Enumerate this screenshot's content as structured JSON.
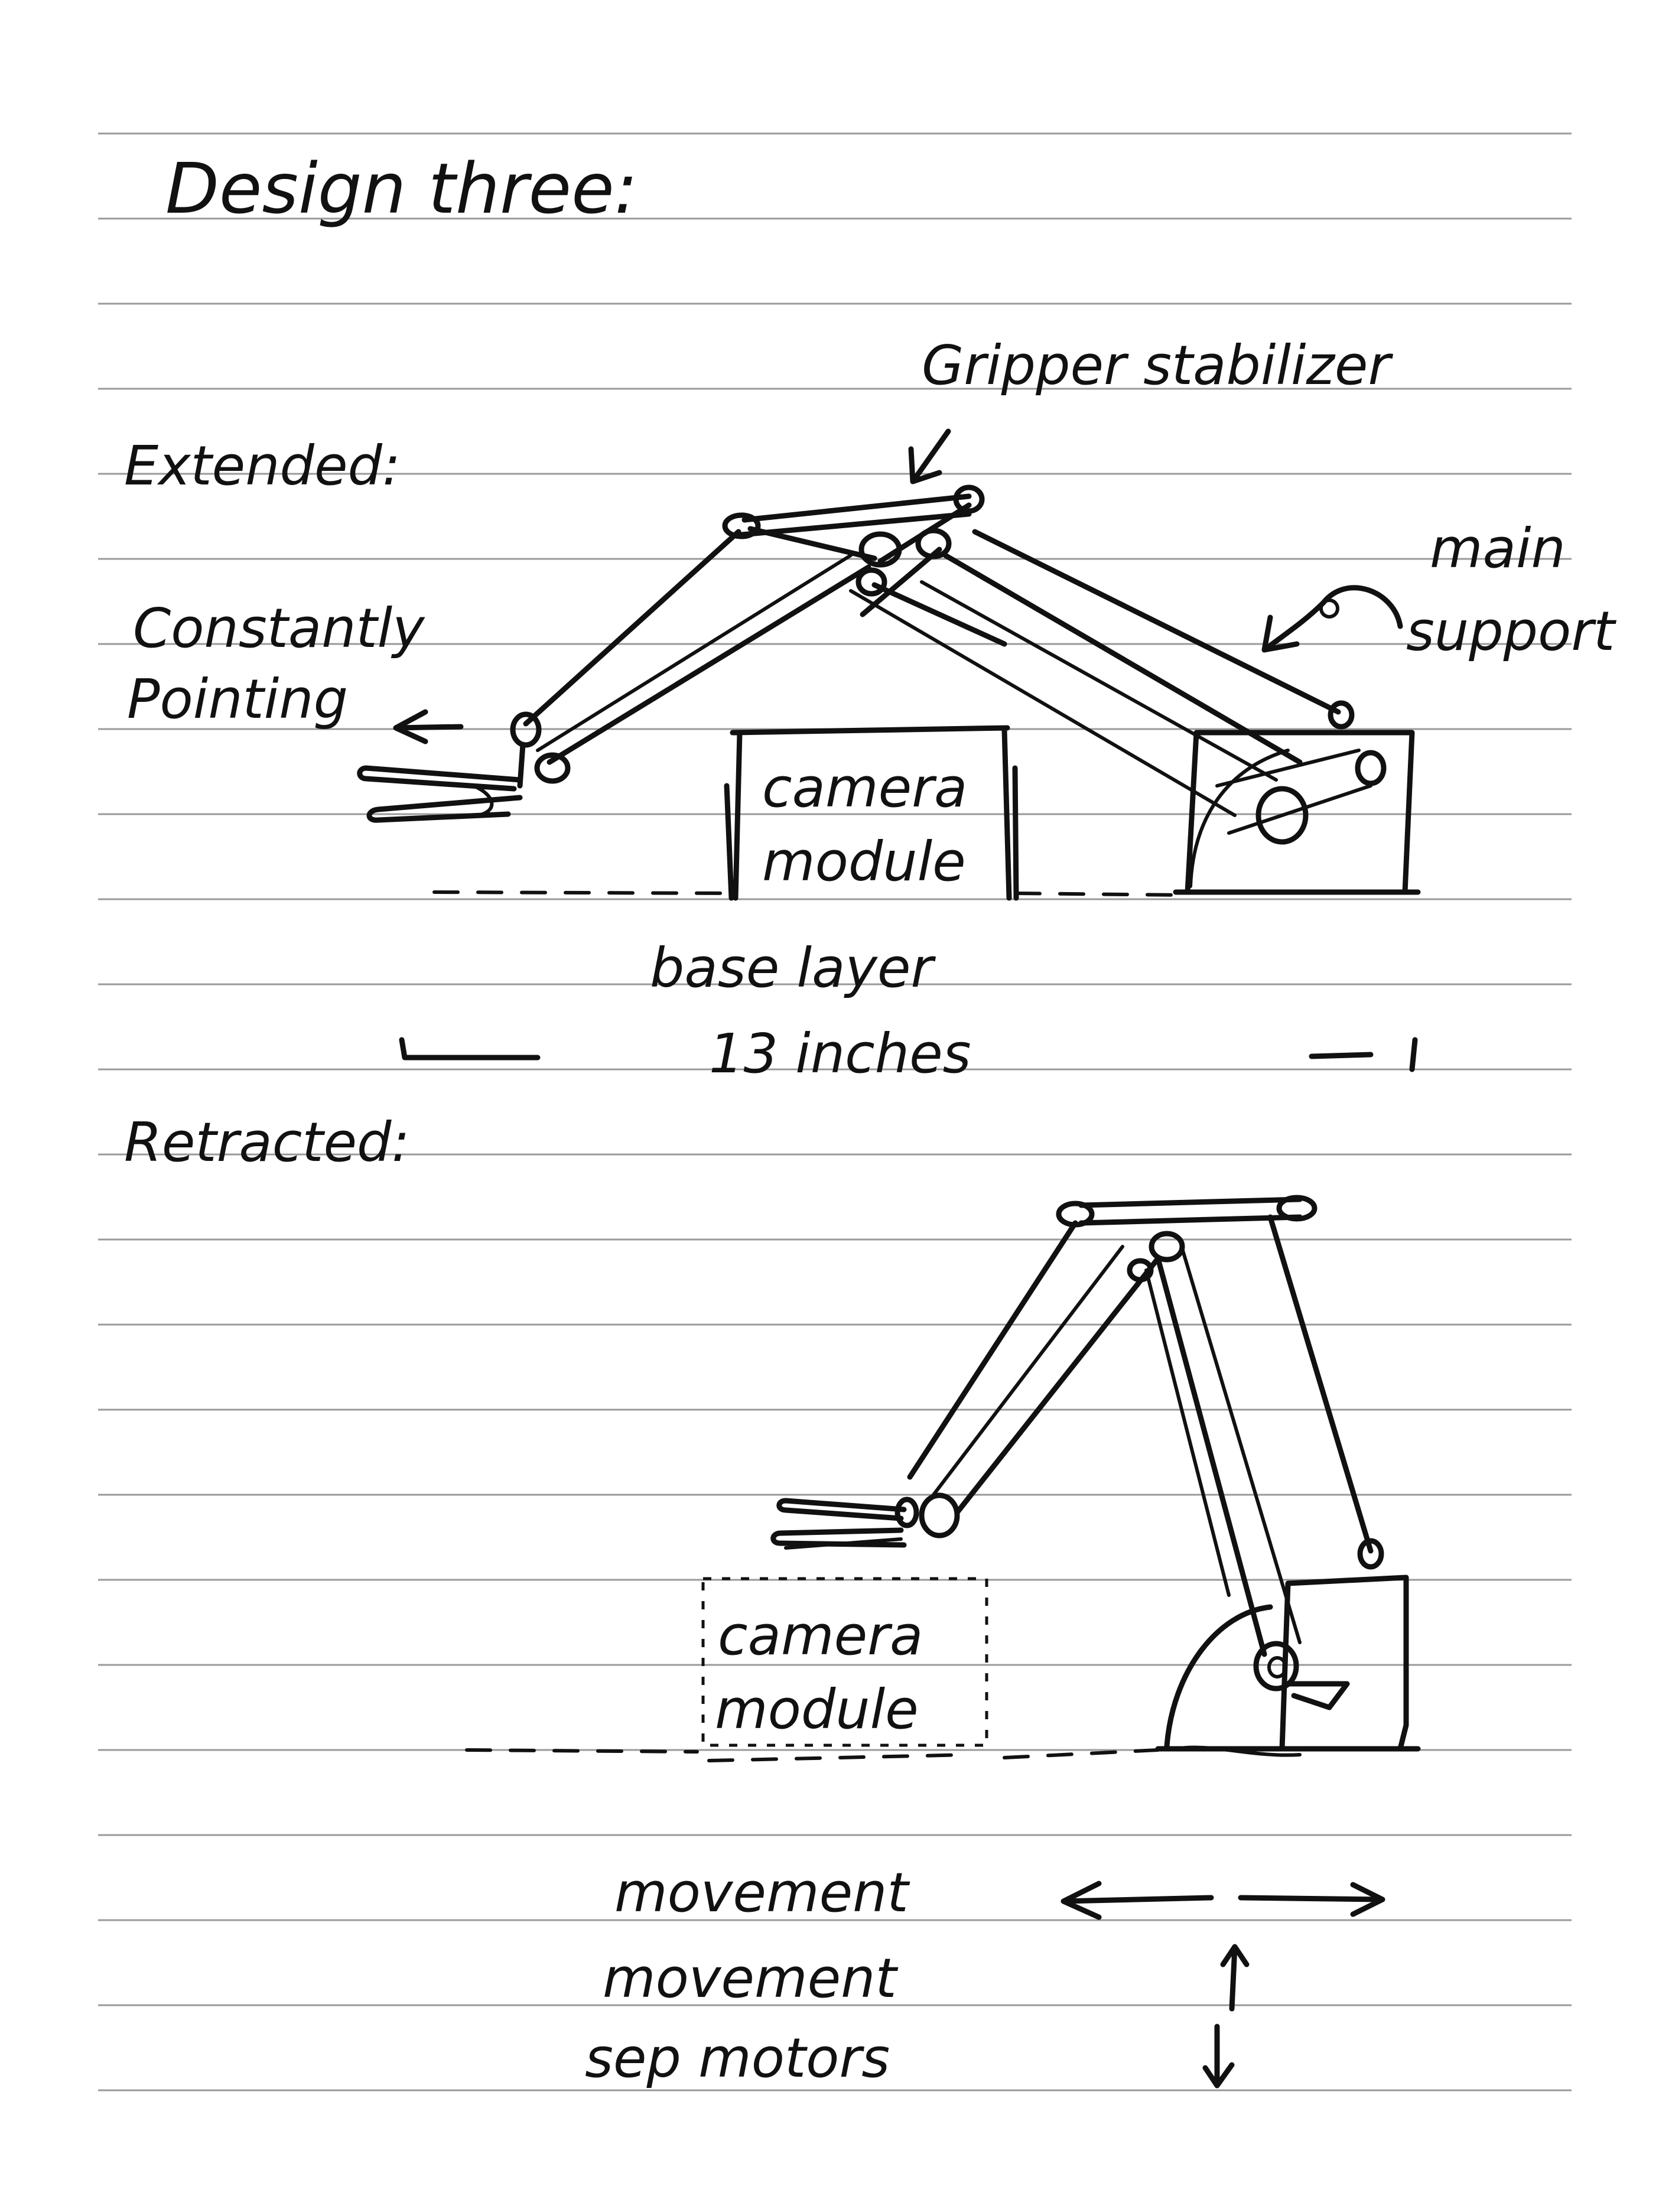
{
  "title": "Design three:",
  "extended": {
    "heading": "Extended:",
    "gripper_stabilizer": "Gripper stabilizer",
    "main_support_1": "main",
    "main_support_2": "support",
    "pointing_1": "Constantly",
    "pointing_2": "Pointing",
    "camera_1": "camera",
    "camera_2": "module",
    "base_layer": "base layer",
    "dimension": "13 inches"
  },
  "retracted": {
    "heading": "Retracted:",
    "camera_1": "camera",
    "camera_2": "module"
  },
  "notes": {
    "line1": "movement",
    "line2": "movement",
    "line3": "sep motors"
  }
}
